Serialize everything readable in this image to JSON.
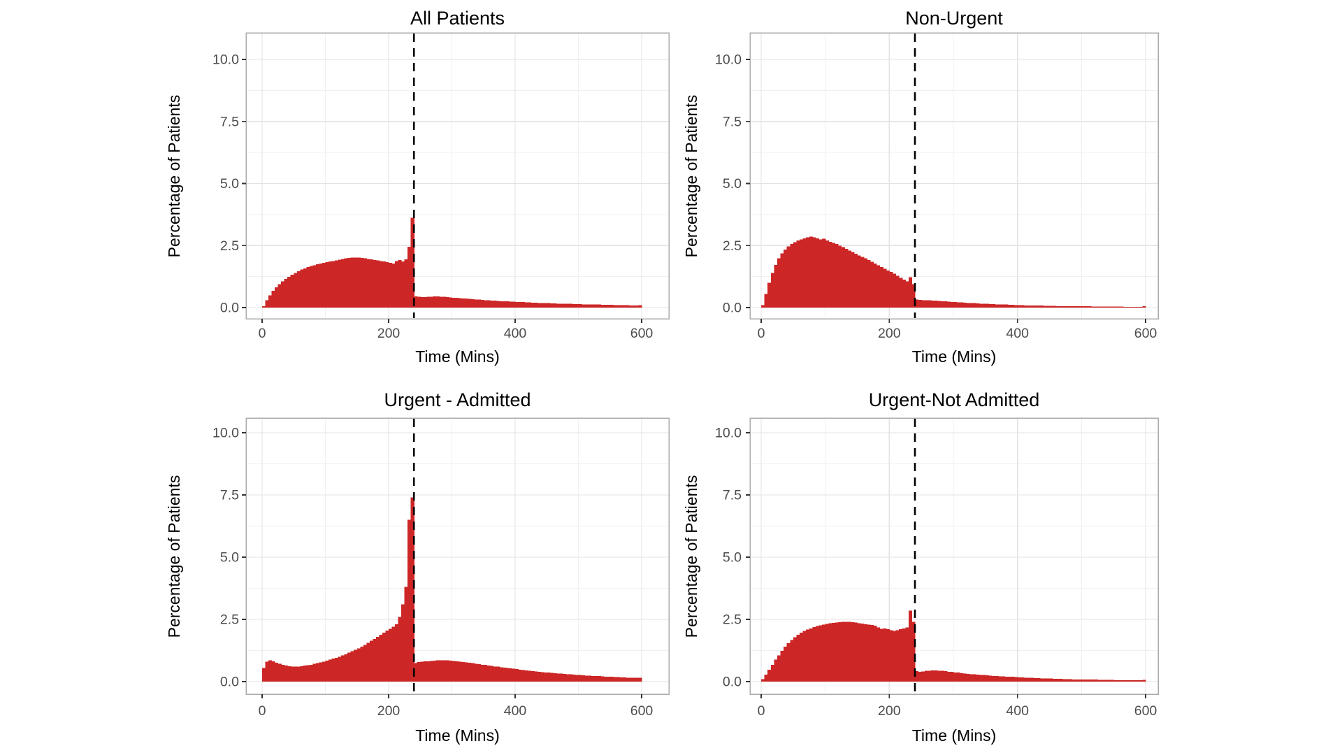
{
  "style": {
    "bar_color": "#CC2626",
    "grid_major_color": "#E3E3E3",
    "grid_minor_color": "#F0F0F0",
    "panel_border_color": "#ABABAB",
    "tick_mark_color": "#333333",
    "tick_label_color": "#4D4D4D",
    "title_color": "#000000",
    "reference_line_color": "#000000",
    "background_color": "#FFFFFF"
  },
  "axes": {
    "x_label": "Time (Mins)",
    "y_label": "Percentage of Patients",
    "x_ticks": [
      0,
      200,
      400,
      600
    ],
    "x_tick_labels": [
      "0",
      "200",
      "400",
      "600"
    ],
    "y_ticks": [
      0,
      2.5,
      5,
      7.5,
      10
    ],
    "y_tick_labels": [
      "0.0",
      "2.5",
      "5.0",
      "7.5",
      "10.0"
    ],
    "x_minor_ticks": [
      100,
      300,
      500
    ],
    "y_minor_ticks": [
      1.25,
      3.75,
      6.25,
      8.75
    ],
    "x_range": [
      0,
      600
    ],
    "y_range": [
      0,
      10.5
    ]
  },
  "reference_line_x": 240,
  "chart_data": [
    {
      "type": "bar",
      "subtype": "histogram",
      "title": "All Patients",
      "xlabel": "Time (Mins)",
      "ylabel": "Percentage of Patients",
      "xlim": [
        0,
        600
      ],
      "ylim": [
        0,
        10.5
      ],
      "grid": true,
      "vline_x": 240,
      "bin_start": 0,
      "bin_width": 5,
      "values": [
        0.05,
        0.3,
        0.5,
        0.68,
        0.82,
        0.95,
        1.05,
        1.15,
        1.24,
        1.32,
        1.4,
        1.47,
        1.53,
        1.58,
        1.63,
        1.67,
        1.71,
        1.74,
        1.77,
        1.8,
        1.83,
        1.86,
        1.88,
        1.9,
        1.93,
        1.96,
        1.98,
        2.0,
        2.02,
        2.02,
        2.01,
        2.0,
        1.98,
        1.96,
        1.94,
        1.92,
        1.9,
        1.88,
        1.86,
        1.83,
        1.8,
        1.78,
        1.88,
        1.92,
        1.86,
        1.95,
        2.45,
        3.62,
        0.45,
        0.43,
        0.42,
        0.42,
        0.43,
        0.44,
        0.45,
        0.45,
        0.44,
        0.43,
        0.42,
        0.41,
        0.4,
        0.39,
        0.38,
        0.37,
        0.36,
        0.35,
        0.34,
        0.33,
        0.32,
        0.31,
        0.3,
        0.29,
        0.28,
        0.28,
        0.27,
        0.26,
        0.26,
        0.25,
        0.24,
        0.24,
        0.23,
        0.22,
        0.22,
        0.21,
        0.21,
        0.2,
        0.2,
        0.19,
        0.19,
        0.18,
        0.18,
        0.17,
        0.17,
        0.16,
        0.16,
        0.15,
        0.15,
        0.15,
        0.14,
        0.14,
        0.14,
        0.13,
        0.13,
        0.13,
        0.12,
        0.12,
        0.12,
        0.11,
        0.11,
        0.11,
        0.11,
        0.1,
        0.1,
        0.1,
        0.1,
        0.1,
        0.09,
        0.09,
        0.09,
        0.1
      ]
    },
    {
      "type": "bar",
      "subtype": "histogram",
      "title": "Non-Urgent",
      "xlabel": "Time (Mins)",
      "ylabel": "Percentage of Patients",
      "xlim": [
        0,
        600
      ],
      "ylim": [
        0,
        10.5
      ],
      "grid": true,
      "vline_x": 240,
      "bin_start": 0,
      "bin_width": 5,
      "values": [
        0.1,
        0.55,
        1.0,
        1.4,
        1.72,
        1.98,
        2.18,
        2.34,
        2.47,
        2.57,
        2.64,
        2.7,
        2.75,
        2.79,
        2.83,
        2.86,
        2.83,
        2.79,
        2.75,
        2.77,
        2.7,
        2.65,
        2.6,
        2.56,
        2.5,
        2.44,
        2.37,
        2.3,
        2.24,
        2.17,
        2.1,
        2.04,
        1.98,
        1.92,
        1.85,
        1.78,
        1.71,
        1.64,
        1.57,
        1.5,
        1.43,
        1.36,
        1.28,
        1.2,
        1.12,
        1.06,
        1.22,
        0.95,
        0.33,
        0.31,
        0.3,
        0.3,
        0.29,
        0.28,
        0.28,
        0.27,
        0.26,
        0.25,
        0.24,
        0.23,
        0.22,
        0.21,
        0.21,
        0.2,
        0.19,
        0.18,
        0.18,
        0.17,
        0.16,
        0.16,
        0.15,
        0.14,
        0.14,
        0.13,
        0.13,
        0.12,
        0.12,
        0.11,
        0.11,
        0.1,
        0.1,
        0.1,
        0.09,
        0.09,
        0.09,
        0.08,
        0.08,
        0.08,
        0.07,
        0.07,
        0.07,
        0.07,
        0.06,
        0.06,
        0.06,
        0.06,
        0.06,
        0.05,
        0.05,
        0.05,
        0.05,
        0.05,
        0.05,
        0.04,
        0.04,
        0.04,
        0.04,
        0.04,
        0.04,
        0.04,
        0.04,
        0.04,
        0.04,
        0.03,
        0.03,
        0.03,
        0.03,
        0.03,
        0.03,
        0.05
      ]
    },
    {
      "type": "bar",
      "subtype": "histogram",
      "title": "Urgent - Admitted",
      "xlabel": "Time (Mins)",
      "ylabel": "Percentage of Patients",
      "xlim": [
        0,
        600
      ],
      "ylim": [
        0,
        10.5
      ],
      "grid": true,
      "vline_x": 240,
      "bin_start": 0,
      "bin_width": 5,
      "values": [
        0.55,
        0.8,
        0.85,
        0.82,
        0.76,
        0.71,
        0.67,
        0.64,
        0.62,
        0.6,
        0.6,
        0.61,
        0.62,
        0.64,
        0.66,
        0.68,
        0.71,
        0.74,
        0.77,
        0.8,
        0.84,
        0.88,
        0.92,
        0.96,
        1.0,
        1.05,
        1.1,
        1.16,
        1.22,
        1.28,
        1.34,
        1.41,
        1.48,
        1.56,
        1.64,
        1.72,
        1.8,
        1.88,
        1.96,
        2.05,
        2.12,
        2.2,
        2.3,
        2.6,
        3.1,
        3.8,
        6.5,
        7.4,
        0.75,
        0.78,
        0.8,
        0.81,
        0.82,
        0.83,
        0.84,
        0.85,
        0.85,
        0.85,
        0.85,
        0.84,
        0.83,
        0.82,
        0.8,
        0.79,
        0.77,
        0.76,
        0.74,
        0.72,
        0.7,
        0.68,
        0.67,
        0.65,
        0.63,
        0.61,
        0.6,
        0.58,
        0.56,
        0.55,
        0.53,
        0.52,
        0.5,
        0.48,
        0.47,
        0.45,
        0.44,
        0.42,
        0.41,
        0.4,
        0.38,
        0.37,
        0.36,
        0.35,
        0.34,
        0.33,
        0.32,
        0.31,
        0.3,
        0.29,
        0.28,
        0.27,
        0.26,
        0.25,
        0.24,
        0.24,
        0.23,
        0.22,
        0.22,
        0.21,
        0.2,
        0.2,
        0.19,
        0.18,
        0.18,
        0.17,
        0.17,
        0.16,
        0.16,
        0.15,
        0.15,
        0.15
      ]
    },
    {
      "type": "bar",
      "subtype": "histogram",
      "title": "Urgent-Not Admitted",
      "xlabel": "Time (Mins)",
      "ylabel": "Percentage of Patients",
      "xlim": [
        0,
        600
      ],
      "ylim": [
        0,
        10.5
      ],
      "grid": true,
      "vline_x": 240,
      "bin_start": 0,
      "bin_width": 5,
      "values": [
        0.1,
        0.28,
        0.48,
        0.68,
        0.88,
        1.06,
        1.24,
        1.4,
        1.54,
        1.67,
        1.78,
        1.88,
        1.96,
        2.03,
        2.09,
        2.14,
        2.19,
        2.23,
        2.26,
        2.29,
        2.32,
        2.34,
        2.36,
        2.38,
        2.39,
        2.4,
        2.4,
        2.4,
        2.39,
        2.37,
        2.35,
        2.33,
        2.31,
        2.29,
        2.27,
        2.25,
        2.18,
        2.12,
        2.14,
        2.1,
        2.06,
        2.03,
        2.06,
        2.1,
        2.14,
        2.18,
        2.85,
        2.4,
        0.42,
        0.4,
        0.41,
        0.43,
        0.44,
        0.45,
        0.45,
        0.44,
        0.43,
        0.42,
        0.4,
        0.39,
        0.37,
        0.36,
        0.34,
        0.33,
        0.31,
        0.3,
        0.29,
        0.28,
        0.27,
        0.26,
        0.25,
        0.24,
        0.23,
        0.22,
        0.21,
        0.21,
        0.2,
        0.19,
        0.19,
        0.18,
        0.17,
        0.17,
        0.16,
        0.16,
        0.15,
        0.14,
        0.14,
        0.13,
        0.13,
        0.12,
        0.12,
        0.11,
        0.11,
        0.11,
        0.1,
        0.1,
        0.1,
        0.09,
        0.09,
        0.09,
        0.09,
        0.08,
        0.08,
        0.08,
        0.08,
        0.07,
        0.07,
        0.07,
        0.07,
        0.07,
        0.06,
        0.06,
        0.06,
        0.06,
        0.06,
        0.06,
        0.05,
        0.05,
        0.05,
        0.07
      ]
    }
  ]
}
